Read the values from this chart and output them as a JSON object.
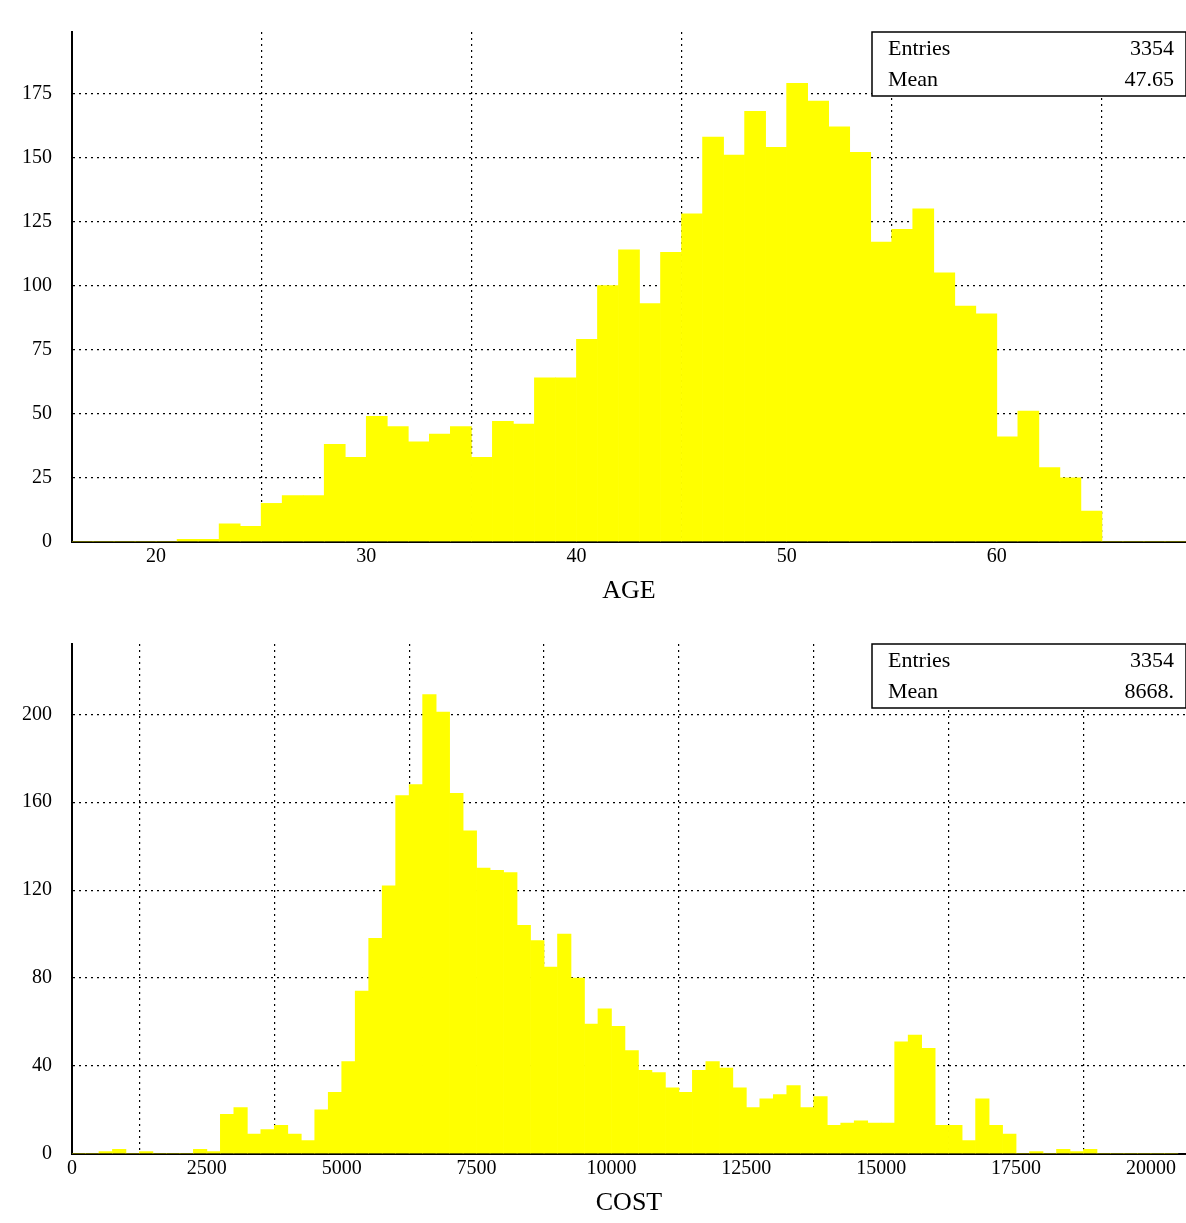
{
  "chart_data": [
    {
      "type": "histogram",
      "xlabel": "AGE",
      "color": "#ffff00",
      "bins": [
        16,
        17,
        18,
        19,
        20,
        21,
        22,
        23,
        24,
        25,
        26,
        27,
        28,
        29,
        30,
        31,
        32,
        33,
        34,
        35,
        36,
        37,
        38,
        39,
        40,
        41,
        42,
        43,
        44,
        45,
        46,
        47,
        48,
        49,
        50,
        51,
        52,
        53,
        54,
        55,
        56,
        57,
        58,
        59,
        60,
        61,
        62,
        63,
        64,
        65,
        66,
        67,
        68,
        69
      ],
      "values": [
        0,
        0,
        0,
        0,
        0,
        1,
        1,
        7,
        6,
        15,
        18,
        18,
        38,
        33,
        49,
        45,
        39,
        42,
        45,
        33,
        47,
        46,
        64,
        64,
        79,
        100,
        114,
        93,
        113,
        128,
        158,
        151,
        168,
        154,
        179,
        172,
        162,
        152,
        117,
        122,
        130,
        105,
        92,
        89,
        41,
        51,
        29,
        25,
        12,
        0,
        0,
        0,
        0
      ],
      "xlim": [
        16,
        69
      ],
      "xticks": [
        20,
        30,
        40,
        50,
        60
      ],
      "ylim": [
        0,
        199
      ],
      "yticks": [
        0,
        25,
        50,
        75,
        100,
        125,
        150,
        175
      ],
      "grid": true,
      "legend": false,
      "annotations": [
        "Entries",
        "3354",
        "Mean",
        "47.65"
      ]
    },
    {
      "type": "histogram",
      "xlabel": "COST",
      "color": "#ffff00",
      "bins": [
        0,
        250,
        500,
        750,
        1000,
        1250,
        1500,
        1750,
        2000,
        2250,
        2500,
        2750,
        3000,
        3250,
        3500,
        3750,
        4000,
        4250,
        4500,
        4750,
        5000,
        5250,
        5500,
        5750,
        6000,
        6250,
        6500,
        6750,
        7000,
        7250,
        7500,
        7750,
        8000,
        8250,
        8500,
        8750,
        9000,
        9250,
        9500,
        9750,
        10000,
        10250,
        10500,
        10750,
        11000,
        11250,
        11500,
        11750,
        12000,
        12250,
        12500,
        12750,
        13000,
        13250,
        13500,
        13750,
        14000,
        14250,
        14500,
        14750,
        15000,
        15250,
        15500,
        15750,
        16000,
        16250,
        16500,
        16750,
        17000,
        17250,
        17500,
        17750,
        18000,
        18250,
        18500,
        18750,
        19000,
        19250,
        19500,
        19750,
        20000,
        20250,
        20500
      ],
      "values": [
        0,
        0,
        1,
        2,
        0,
        1,
        0,
        0,
        0,
        2,
        1,
        18,
        21,
        9,
        11,
        13,
        9,
        6,
        20,
        28,
        42,
        74,
        98,
        122,
        163,
        168,
        209,
        201,
        164,
        147,
        130,
        129,
        128,
        104,
        97,
        85,
        100,
        80,
        59,
        66,
        58,
        47,
        38,
        37,
        30,
        28,
        38,
        42,
        39,
        30,
        21,
        25,
        27,
        31,
        21,
        26,
        13,
        14,
        15,
        14,
        14,
        51,
        54,
        48,
        13,
        13,
        6,
        25,
        13,
        9,
        0,
        1,
        0,
        2,
        1,
        2,
        0,
        0,
        0,
        0,
        0,
        0
      ],
      "xlim": [
        0,
        20650
      ],
      "xticks": [
        0,
        2500,
        5000,
        7500,
        10000,
        12500,
        15000,
        17500,
        20000
      ],
      "ylim": [
        0,
        232
      ],
      "yticks": [
        0,
        40,
        80,
        120,
        160,
        200
      ],
      "grid": true,
      "legend": false,
      "annotations": [
        "Entries",
        "3354",
        "Mean",
        "8668."
      ]
    }
  ]
}
